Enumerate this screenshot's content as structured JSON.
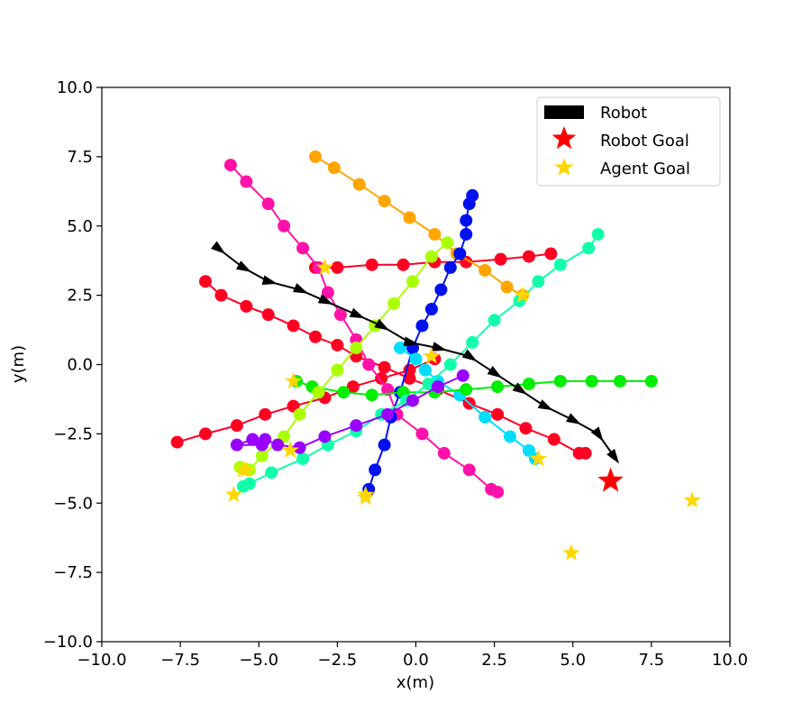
{
  "chart_data": {
    "type": "scatter",
    "title": "",
    "xlabel": "x(m)",
    "ylabel": "y(m)",
    "xlim": [
      -10,
      10
    ],
    "ylim": [
      -10,
      10
    ],
    "x_ticks": [
      -10,
      -7.5,
      -5,
      -2.5,
      0,
      2.5,
      5,
      7.5,
      10
    ],
    "y_ticks": [
      -10,
      -7.5,
      -5,
      -2.5,
      0,
      2.5,
      5,
      7.5,
      10
    ],
    "x_tick_labels": [
      "−10.0",
      "−7.5",
      "−5.0",
      "−2.5",
      "0.0",
      "2.5",
      "5.0",
      "7.5",
      "10.0"
    ],
    "y_tick_labels": [
      "−10.0",
      "−7.5",
      "−5.0",
      "−2.5",
      "0.0",
      "2.5",
      "5.0",
      "7.5",
      "10.0"
    ],
    "grid": false,
    "legend_position": "top-right",
    "legend": [
      {
        "label": "Robot",
        "marker": "rect",
        "color": "#000000"
      },
      {
        "label": "Robot Goal",
        "marker": "star",
        "color": "#ff0000"
      },
      {
        "label": "Agent Goal",
        "marker": "star",
        "color": "#ffd700"
      }
    ],
    "robot": {
      "color": "#000000",
      "points": [
        [
          -6.3,
          4.2
        ],
        [
          -5.5,
          3.5
        ],
        [
          -4.7,
          3.0
        ],
        [
          -3.7,
          2.7
        ],
        [
          -2.9,
          2.3
        ],
        [
          -1.9,
          1.8
        ],
        [
          -1.1,
          1.4
        ],
        [
          -0.2,
          0.8
        ],
        [
          0.7,
          0.6
        ],
        [
          1.7,
          0.3
        ],
        [
          2.5,
          -0.3
        ],
        [
          3.3,
          -0.9
        ],
        [
          4.1,
          -1.5
        ],
        [
          5.0,
          -2.0
        ],
        [
          5.8,
          -2.5
        ],
        [
          6.3,
          -3.3
        ]
      ],
      "goal": [
        6.2,
        -4.2
      ]
    },
    "agents": [
      {
        "color": "#ff0022",
        "points": [
          [
            4.3,
            4.0
          ],
          [
            3.6,
            3.9
          ],
          [
            2.7,
            3.8
          ],
          [
            1.6,
            3.7
          ],
          [
            0.6,
            3.7
          ],
          [
            -0.4,
            3.6
          ],
          [
            -1.4,
            3.6
          ],
          [
            -2.5,
            3.5
          ],
          [
            -3.2,
            3.5
          ]
        ],
        "goal": [
          -2.9,
          3.5
        ]
      },
      {
        "color": "#ff0022",
        "points": [
          [
            -6.7,
            3.0
          ],
          [
            -6.2,
            2.5
          ],
          [
            -5.4,
            2.1
          ],
          [
            -4.7,
            1.8
          ],
          [
            -3.9,
            1.4
          ],
          [
            -3.2,
            1.0
          ],
          [
            -2.5,
            0.7
          ],
          [
            -1.9,
            0.3
          ],
          [
            -1.0,
            -0.1
          ],
          [
            -0.2,
            -0.5
          ],
          [
            0.7,
            -0.9
          ],
          [
            1.7,
            -1.4
          ],
          [
            2.6,
            -1.8
          ],
          [
            3.5,
            -2.3
          ],
          [
            4.4,
            -2.7
          ],
          [
            5.2,
            -3.2
          ],
          [
            5.4,
            -3.2
          ]
        ],
        "goal": [
          8.8,
          -4.9
        ]
      },
      {
        "color": "#ff0022",
        "points": [
          [
            -7.6,
            -2.8
          ],
          [
            -6.7,
            -2.5
          ],
          [
            -5.7,
            -2.2
          ],
          [
            -4.8,
            -1.8
          ],
          [
            -3.9,
            -1.5
          ],
          [
            -2.9,
            -1.2
          ],
          [
            -2.0,
            -0.8
          ],
          [
            -1.1,
            -0.5
          ],
          [
            -0.2,
            -0.2
          ],
          [
            0.6,
            0.2
          ]
        ],
        "goal": [
          0.5,
          0.3
        ]
      },
      {
        "color": "#ffa500",
        "points": [
          [
            -3.2,
            7.5
          ],
          [
            -2.6,
            7.1
          ],
          [
            -1.8,
            6.5
          ],
          [
            -1.0,
            5.9
          ],
          [
            -0.2,
            5.3
          ],
          [
            0.6,
            4.7
          ],
          [
            1.3,
            4.0
          ],
          [
            2.2,
            3.4
          ],
          [
            2.9,
            2.8
          ],
          [
            3.4,
            2.5
          ]
        ],
        "goal": [
          3.4,
          2.5
        ]
      },
      {
        "color": "#ff11aa",
        "points": [
          [
            -5.9,
            7.2
          ],
          [
            -5.4,
            6.6
          ],
          [
            -4.7,
            5.8
          ],
          [
            -4.2,
            5.0
          ],
          [
            -3.6,
            4.2
          ],
          [
            -3.1,
            3.5
          ],
          [
            -2.8,
            2.6
          ],
          [
            -2.4,
            1.8
          ],
          [
            -1.9,
            0.9
          ],
          [
            -1.5,
            0.0
          ],
          [
            -0.9,
            -0.9
          ],
          [
            -0.6,
            -1.8
          ],
          [
            0.2,
            -2.5
          ],
          [
            0.9,
            -3.2
          ],
          [
            1.7,
            -3.8
          ],
          [
            2.4,
            -4.5
          ],
          [
            2.6,
            -4.6
          ]
        ],
        "goal": [
          -5.4,
          -3.8
        ]
      },
      {
        "color": "#0011ee",
        "points": [
          [
            1.8,
            6.1
          ],
          [
            1.7,
            5.8
          ],
          [
            1.6,
            5.2
          ],
          [
            1.6,
            4.7
          ],
          [
            1.4,
            4.0
          ],
          [
            1.1,
            3.5
          ],
          [
            0.8,
            2.7
          ],
          [
            0.5,
            2.0
          ],
          [
            0.2,
            1.4
          ],
          [
            -0.1,
            0.6
          ],
          [
            -0.5,
            -1.0
          ],
          [
            -0.8,
            -1.9
          ],
          [
            -1.0,
            -2.9
          ],
          [
            -1.3,
            -3.8
          ],
          [
            -1.5,
            -4.5
          ]
        ],
        "goal": [
          -1.6,
          -4.7
        ]
      },
      {
        "color": "#00ddff",
        "points": [
          [
            -0.5,
            0.6
          ],
          [
            0.0,
            0.2
          ],
          [
            0.3,
            -0.2
          ],
          [
            0.7,
            -0.6
          ],
          [
            1.4,
            -1.1
          ],
          [
            2.2,
            -1.9
          ],
          [
            3.0,
            -2.6
          ],
          [
            3.6,
            -3.1
          ],
          [
            3.8,
            -3.4
          ]
        ],
        "goal": [
          3.9,
          -3.4
        ]
      },
      {
        "color": "#00ee00",
        "points": [
          [
            7.5,
            -0.6
          ],
          [
            6.5,
            -0.6
          ],
          [
            5.6,
            -0.6
          ],
          [
            4.6,
            -0.6
          ],
          [
            3.6,
            -0.7
          ],
          [
            2.6,
            -0.8
          ],
          [
            1.6,
            -0.9
          ],
          [
            0.6,
            -1.0
          ],
          [
            -0.4,
            -1.0
          ],
          [
            -1.4,
            -1.1
          ],
          [
            -2.3,
            -1.0
          ],
          [
            -3.3,
            -0.8
          ],
          [
            -3.8,
            -0.6
          ]
        ],
        "goal": [
          -3.9,
          -0.6
        ]
      },
      {
        "color": "#11ffaa",
        "points": [
          [
            5.8,
            4.7
          ],
          [
            5.5,
            4.2
          ],
          [
            4.6,
            3.6
          ],
          [
            3.9,
            3.0
          ],
          [
            3.3,
            2.3
          ],
          [
            2.5,
            1.6
          ],
          [
            1.8,
            0.8
          ],
          [
            1.1,
            0.0
          ],
          [
            0.4,
            -0.7
          ],
          [
            -0.3,
            -1.3
          ],
          [
            -1.1,
            -1.8
          ],
          [
            -1.9,
            -2.4
          ],
          [
            -2.8,
            -2.9
          ],
          [
            -3.6,
            -3.4
          ],
          [
            -4.6,
            -3.9
          ],
          [
            -5.5,
            -4.4
          ],
          [
            -5.3,
            -4.3
          ]
        ],
        "goal": [
          -5.8,
          -4.7
        ]
      },
      {
        "color": "#aaff00",
        "points": [
          [
            1.0,
            4.4
          ],
          [
            0.5,
            3.9
          ],
          [
            -0.1,
            3.0
          ],
          [
            -0.7,
            2.2
          ],
          [
            -1.3,
            1.4
          ],
          [
            -1.9,
            0.6
          ],
          [
            -2.5,
            -0.2
          ],
          [
            -3.1,
            -1.0
          ],
          [
            -3.7,
            -1.8
          ],
          [
            -4.2,
            -2.6
          ],
          [
            -4.9,
            -3.3
          ],
          [
            -5.3,
            -3.8
          ],
          [
            -5.6,
            -3.7
          ]
        ],
        "goal": [
          -5.5,
          -3.8
        ]
      },
      {
        "color": "#9900ff",
        "points": [
          [
            1.5,
            -0.4
          ],
          [
            0.7,
            -0.8
          ],
          [
            -0.1,
            -1.3
          ],
          [
            -0.9,
            -1.8
          ],
          [
            -1.9,
            -2.2
          ],
          [
            -2.9,
            -2.6
          ],
          [
            -3.7,
            -3.0
          ],
          [
            -4.4,
            -2.9
          ],
          [
            -4.8,
            -2.7
          ],
          [
            -5.2,
            -2.7
          ],
          [
            -5.7,
            -2.9
          ],
          [
            -4.9,
            -2.9
          ]
        ],
        "goal": [
          -4.0,
          -3.1
        ]
      }
    ],
    "extra_agent_goals": [
      [
        -1.6,
        -4.8
      ],
      [
        4.95,
        -6.8
      ],
      [
        0.5,
        0.3
      ],
      [
        3.9,
        -3.4
      ],
      [
        -4.0,
        -3.1
      ]
    ]
  }
}
